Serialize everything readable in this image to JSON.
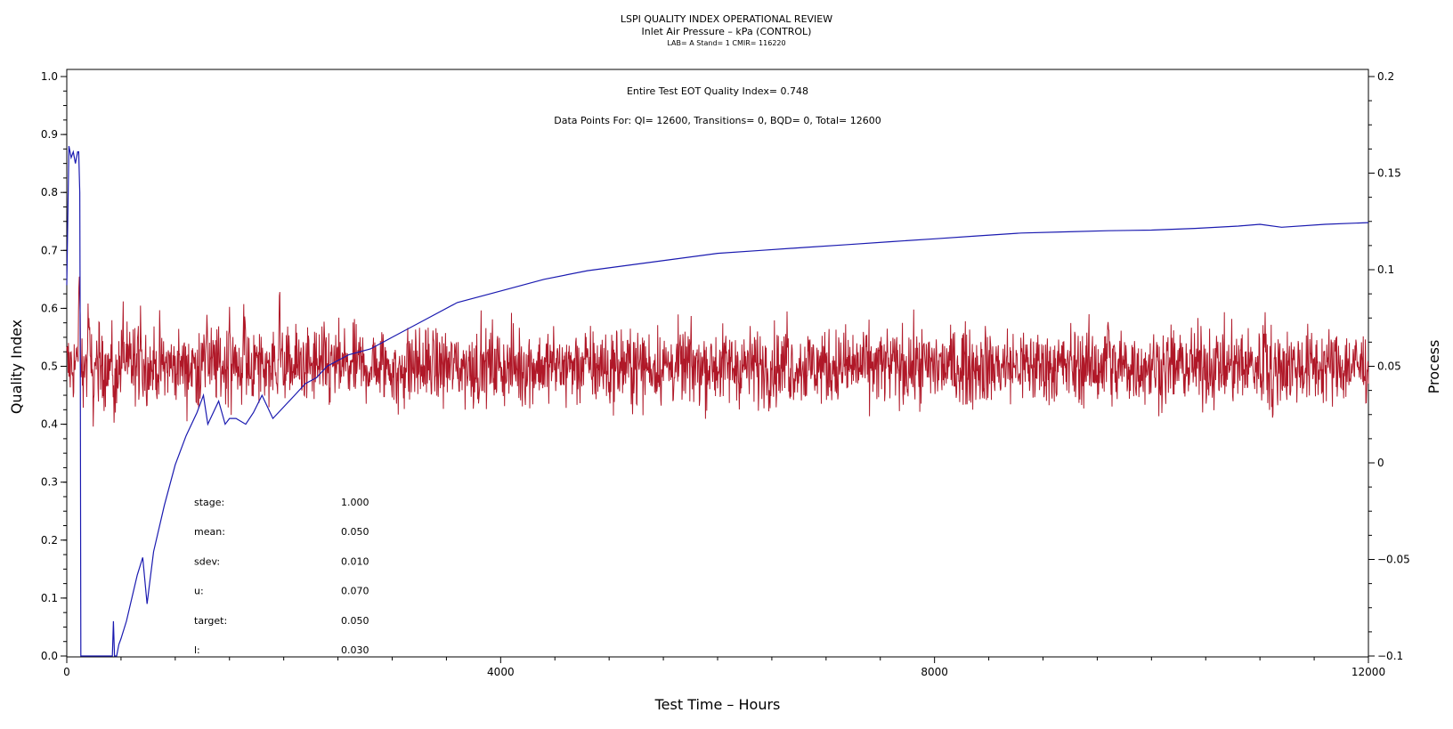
{
  "chart_data": {
    "type": "line",
    "title": "LSPI QUALITY INDEX OPERATIONAL REVIEW",
    "subtitle": "Inlet Air Pressure – kPa (CONTROL)",
    "subtitle2": "LAB= A Stand= 1 CMIR= 116220",
    "xlabel": "Test Time – Hours",
    "ylabel": "Quality Index",
    "y2label": "Process",
    "xlim": [
      0,
      12000
    ],
    "ylim": [
      0,
      1.0
    ],
    "y2lim": [
      -0.1,
      0.2
    ],
    "x_ticks": [
      "0",
      "4000",
      "8000",
      "12000"
    ],
    "y_ticks": [
      "0.0",
      "0.1",
      "0.2",
      "0.3",
      "0.4",
      "0.5",
      "0.6",
      "0.7",
      "0.8",
      "0.9",
      "1.0"
    ],
    "y2_ticks": [
      "−0.1",
      "−0.05",
      "0",
      "0.05",
      "0.1",
      "0.15",
      "0.2"
    ],
    "annotations": {
      "eot": "Entire Test EOT Quality Index=  0.748",
      "points": "Data Points For: QI= 12600, Transitions=     0, BQD=     0, Total= 12600"
    },
    "stats": [
      {
        "label": "stage:",
        "value": "1.000"
      },
      {
        "label": "mean:",
        "value": "0.050"
      },
      {
        "label": "sdev:",
        "value": "0.010"
      },
      {
        "label": "u:",
        "value": "0.070"
      },
      {
        "label": "target:",
        "value": "0.050"
      },
      {
        "label": "l:",
        "value": "0.030"
      }
    ],
    "series": [
      {
        "name": "Quality Index",
        "axis": "left",
        "color": "#1a1ab0",
        "x": [
          0,
          20,
          40,
          60,
          80,
          100,
          110,
          120,
          125,
          130,
          420,
          430,
          440,
          460,
          480,
          500,
          550,
          600,
          650,
          700,
          740,
          760,
          800,
          900,
          1000,
          1100,
          1200,
          1260,
          1300,
          1350,
          1400,
          1460,
          1500,
          1560,
          1650,
          1720,
          1800,
          1900,
          1950,
          2000,
          2100,
          2200,
          2300,
          2400,
          2600,
          2800,
          3000,
          3300,
          3600,
          4000,
          4400,
          4800,
          5200,
          5600,
          6000,
          6400,
          6800,
          7200,
          7600,
          8000,
          8400,
          8800,
          9200,
          9600,
          10000,
          10400,
          10800,
          11000,
          11200,
          11600,
          12000
        ],
        "y": [
          0.64,
          0.88,
          0.86,
          0.87,
          0.85,
          0.87,
          0.87,
          0.8,
          0.5,
          0.0,
          0.0,
          0.06,
          0.0,
          0.0,
          0.02,
          0.03,
          0.06,
          0.1,
          0.14,
          0.17,
          0.09,
          0.12,
          0.18,
          0.26,
          0.33,
          0.38,
          0.42,
          0.45,
          0.4,
          0.42,
          0.44,
          0.4,
          0.41,
          0.41,
          0.4,
          0.42,
          0.45,
          0.41,
          0.42,
          0.43,
          0.45,
          0.47,
          0.48,
          0.5,
          0.52,
          0.53,
          0.55,
          0.58,
          0.61,
          0.63,
          0.65,
          0.665,
          0.675,
          0.685,
          0.695,
          0.7,
          0.705,
          0.71,
          0.715,
          0.72,
          0.725,
          0.73,
          0.732,
          0.734,
          0.735,
          0.738,
          0.742,
          0.745,
          0.74,
          0.745,
          0.748
        ]
      },
      {
        "name": "Process",
        "axis": "right",
        "color": "#b01828",
        "style": "noisy",
        "mean": 0.05,
        "sdev": 0.01,
        "xlim": [
          0,
          12000
        ],
        "spikes": [
          {
            "x": 115,
            "y": 0.11
          },
          {
            "x": 200,
            "y": 0.085
          },
          {
            "x": 240,
            "y": 0.03
          },
          {
            "x": 440,
            "y": 0.02
          },
          {
            "x": 520,
            "y": 0.075
          },
          {
            "x": 680,
            "y": 0.09
          },
          {
            "x": 1290,
            "y": 0.09
          },
          {
            "x": 1500,
            "y": 0.087
          },
          {
            "x": 1640,
            "y": 0.085
          },
          {
            "x": 1960,
            "y": 0.093
          },
          {
            "x": 3050,
            "y": 0.025
          },
          {
            "x": 5000,
            "y": 0.025
          },
          {
            "x": 6640,
            "y": 0.07
          },
          {
            "x": 9600,
            "y": 0.084
          },
          {
            "x": 9680,
            "y": 0.025
          },
          {
            "x": 11050,
            "y": 0.082
          },
          {
            "x": 11120,
            "y": 0.02
          }
        ]
      }
    ]
  }
}
